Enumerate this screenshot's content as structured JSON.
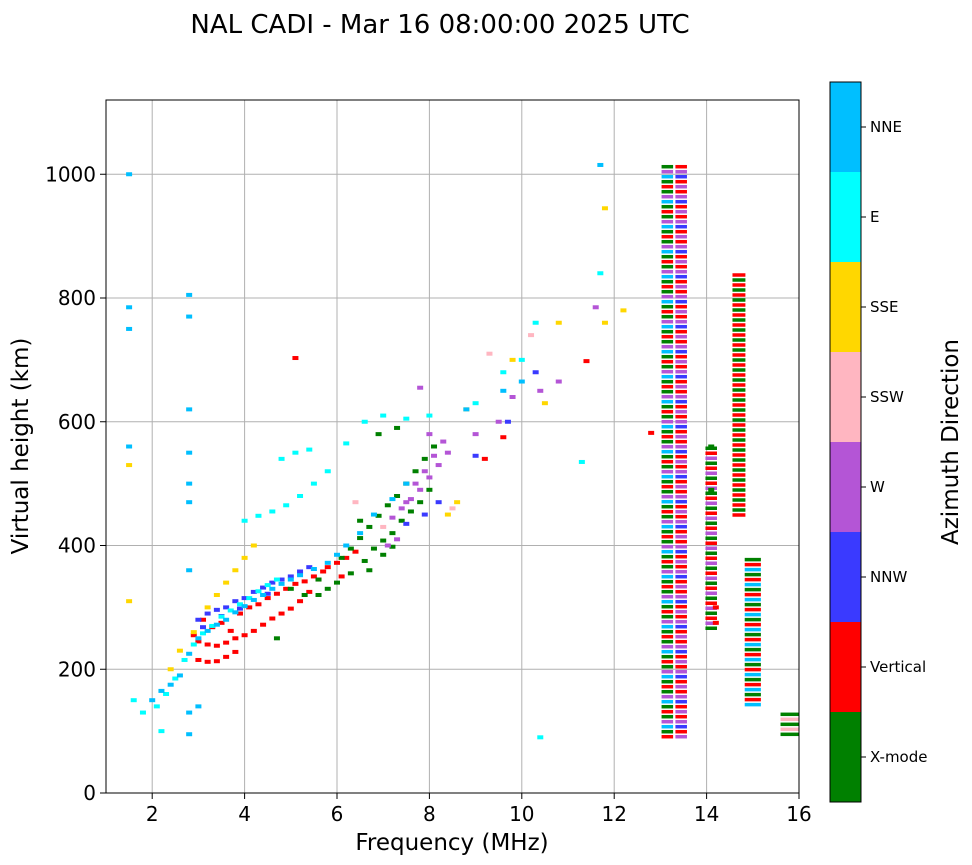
{
  "chart_data": {
    "type": "scatter",
    "title": "NAL CADI - Mar 16 08:00:00 2025 UTC",
    "xlabel": "Frequency (MHz)",
    "ylabel": "Virtual height (km)",
    "xlim": [
      1.0,
      16.0
    ],
    "ylim": [
      0,
      1120
    ],
    "xticks": [
      2,
      4,
      6,
      8,
      10,
      12,
      14,
      16
    ],
    "yticks": [
      0,
      200,
      400,
      600,
      800,
      1000
    ],
    "grid": true,
    "colorbar": {
      "label": "Azimuth Direction",
      "categories": [
        {
          "name": "X-mode",
          "color": "#008000"
        },
        {
          "name": "Vertical",
          "color": "#ff0000"
        },
        {
          "name": "NNW",
          "color": "#3a3aff"
        },
        {
          "name": "W",
          "color": "#b455d6"
        },
        {
          "name": "SSW",
          "color": "#ffb6c1"
        },
        {
          "name": "SSE",
          "color": "#ffd700"
        },
        {
          "name": "E",
          "color": "#00ffff"
        },
        {
          "name": "NNE",
          "color": "#00bfff"
        }
      ]
    },
    "series": [
      {
        "name": "Vertical",
        "points": [
          [
            3.0,
            215
          ],
          [
            3.2,
            212
          ],
          [
            3.4,
            213
          ],
          [
            3.6,
            220
          ],
          [
            3.8,
            228
          ],
          [
            3.0,
            245
          ],
          [
            3.2,
            240
          ],
          [
            3.4,
            238
          ],
          [
            3.6,
            243
          ],
          [
            3.8,
            250
          ],
          [
            4.0,
            255
          ],
          [
            4.2,
            262
          ],
          [
            4.4,
            272
          ],
          [
            4.6,
            282
          ],
          [
            4.8,
            290
          ],
          [
            5.0,
            298
          ],
          [
            5.2,
            310
          ],
          [
            5.4,
            325
          ],
          [
            5.6,
            345
          ],
          [
            5.8,
            365
          ],
          [
            6.1,
            350
          ],
          [
            6.4,
            390
          ],
          [
            2.9,
            255
          ],
          [
            3.3,
            268
          ],
          [
            3.5,
            275
          ],
          [
            3.9,
            290
          ],
          [
            4.1,
            300
          ],
          [
            4.3,
            305
          ],
          [
            4.5,
            315
          ],
          [
            4.7,
            322
          ],
          [
            4.9,
            330
          ],
          [
            5.1,
            338
          ],
          [
            5.3,
            342
          ],
          [
            5.5,
            350
          ],
          [
            5.7,
            358
          ],
          [
            6.0,
            372
          ],
          [
            6.2,
            380
          ],
          [
            3.1,
            280
          ],
          [
            3.7,
            262
          ],
          [
            5.1,
            703
          ],
          [
            9.2,
            540
          ],
          [
            9.6,
            575
          ],
          [
            11.4,
            698
          ],
          [
            12.8,
            582
          ],
          [
            14.2,
            300
          ],
          [
            14.2,
            275
          ]
        ]
      },
      {
        "name": "X-mode",
        "points": [
          [
            5.0,
            330
          ],
          [
            5.3,
            320
          ],
          [
            5.6,
            320
          ],
          [
            5.8,
            330
          ],
          [
            6.0,
            340
          ],
          [
            6.3,
            355
          ],
          [
            6.6,
            375
          ],
          [
            6.8,
            395
          ],
          [
            7.0,
            408
          ],
          [
            7.2,
            420
          ],
          [
            7.4,
            440
          ],
          [
            7.6,
            455
          ],
          [
            7.8,
            470
          ],
          [
            8.0,
            490
          ],
          [
            6.1,
            380
          ],
          [
            6.3,
            395
          ],
          [
            6.5,
            412
          ],
          [
            6.7,
            430
          ],
          [
            6.9,
            448
          ],
          [
            7.1,
            465
          ],
          [
            7.3,
            480
          ],
          [
            7.5,
            500
          ],
          [
            7.7,
            520
          ],
          [
            7.9,
            540
          ],
          [
            8.1,
            560
          ],
          [
            7.3,
            590
          ],
          [
            6.9,
            580
          ],
          [
            6.5,
            440
          ],
          [
            5.6,
            345
          ],
          [
            4.7,
            250
          ],
          [
            6.7,
            360
          ],
          [
            7.0,
            385
          ],
          [
            7.2,
            398
          ],
          [
            14.1,
            560
          ],
          [
            14.1,
            490
          ]
        ]
      },
      {
        "name": "NNW",
        "points": [
          [
            3.0,
            280
          ],
          [
            3.2,
            290
          ],
          [
            3.4,
            296
          ],
          [
            3.6,
            300
          ],
          [
            3.8,
            310
          ],
          [
            4.0,
            315
          ],
          [
            4.2,
            325
          ],
          [
            4.4,
            332
          ],
          [
            4.6,
            340
          ],
          [
            4.8,
            345
          ],
          [
            5.0,
            350
          ],
          [
            5.2,
            358
          ],
          [
            5.4,
            365
          ],
          [
            3.1,
            268
          ],
          [
            3.5,
            286
          ],
          [
            3.9,
            298
          ],
          [
            4.5,
            322
          ],
          [
            7.5,
            435
          ],
          [
            7.9,
            450
          ],
          [
            8.2,
            470
          ],
          [
            9.0,
            545
          ],
          [
            9.7,
            600
          ],
          [
            10.3,
            680
          ]
        ]
      },
      {
        "name": "W",
        "points": [
          [
            7.2,
            445
          ],
          [
            7.4,
            460
          ],
          [
            7.6,
            475
          ],
          [
            7.8,
            490
          ],
          [
            8.0,
            510
          ],
          [
            8.2,
            530
          ],
          [
            8.4,
            550
          ],
          [
            7.7,
            500
          ],
          [
            7.9,
            520
          ],
          [
            8.1,
            545
          ],
          [
            8.3,
            568
          ],
          [
            7.5,
            470
          ],
          [
            7.3,
            410
          ],
          [
            7.1,
            400
          ],
          [
            8.0,
            580
          ],
          [
            9.0,
            580
          ],
          [
            9.5,
            600
          ],
          [
            9.8,
            640
          ],
          [
            10.4,
            650
          ],
          [
            10.8,
            665
          ],
          [
            11.6,
            785
          ],
          [
            7.8,
            655
          ]
        ]
      },
      {
        "name": "SSW",
        "points": [
          [
            8.5,
            460
          ],
          [
            7.0,
            430
          ],
          [
            9.3,
            710
          ],
          [
            6.4,
            470
          ],
          [
            10.2,
            740
          ]
        ]
      },
      {
        "name": "SSE",
        "points": [
          [
            2.4,
            200
          ],
          [
            2.6,
            230
          ],
          [
            2.9,
            260
          ],
          [
            3.2,
            300
          ],
          [
            3.4,
            320
          ],
          [
            3.6,
            340
          ],
          [
            3.8,
            360
          ],
          [
            4.0,
            380
          ],
          [
            4.2,
            400
          ],
          [
            8.6,
            470
          ],
          [
            8.4,
            450
          ],
          [
            8.8,
            620
          ],
          [
            9.8,
            700
          ],
          [
            10.5,
            630
          ],
          [
            10.8,
            760
          ],
          [
            11.8,
            945
          ],
          [
            12.2,
            780
          ],
          [
            11.8,
            760
          ],
          [
            1.5,
            310
          ],
          [
            1.5,
            530
          ]
        ]
      },
      {
        "name": "E",
        "points": [
          [
            1.6,
            150
          ],
          [
            1.8,
            130
          ],
          [
            2.1,
            140
          ],
          [
            2.3,
            160
          ],
          [
            2.5,
            185
          ],
          [
            2.7,
            215
          ],
          [
            2.9,
            240
          ],
          [
            3.1,
            258
          ],
          [
            3.3,
            270
          ],
          [
            3.5,
            285
          ],
          [
            3.7,
            295
          ],
          [
            3.9,
            305
          ],
          [
            4.1,
            315
          ],
          [
            4.3,
            326
          ],
          [
            4.5,
            336
          ],
          [
            4.7,
            345
          ],
          [
            4.0,
            440
          ],
          [
            4.3,
            448
          ],
          [
            4.6,
            455
          ],
          [
            4.9,
            465
          ],
          [
            5.2,
            480
          ],
          [
            5.5,
            500
          ],
          [
            5.8,
            520
          ],
          [
            6.2,
            565
          ],
          [
            6.6,
            600
          ],
          [
            7.0,
            610
          ],
          [
            7.5,
            605
          ],
          [
            8.0,
            610
          ],
          [
            9.0,
            630
          ],
          [
            9.6,
            680
          ],
          [
            10.0,
            700
          ],
          [
            10.3,
            760
          ],
          [
            11.3,
            535
          ],
          [
            11.7,
            840
          ],
          [
            4.8,
            540
          ],
          [
            5.1,
            550
          ],
          [
            5.4,
            555
          ],
          [
            2.2,
            100
          ],
          [
            10.4,
            90
          ]
        ]
      },
      {
        "name": "NNE",
        "points": [
          [
            2.0,
            150
          ],
          [
            2.2,
            165
          ],
          [
            2.4,
            175
          ],
          [
            2.6,
            190
          ],
          [
            2.8,
            225
          ],
          [
            3.0,
            250
          ],
          [
            3.2,
            262
          ],
          [
            3.4,
            272
          ],
          [
            3.6,
            280
          ],
          [
            3.8,
            292
          ],
          [
            4.0,
            302
          ],
          [
            4.2,
            312
          ],
          [
            4.4,
            320
          ],
          [
            4.6,
            330
          ],
          [
            4.8,
            338
          ],
          [
            5.0,
            345
          ],
          [
            5.2,
            352
          ],
          [
            5.5,
            362
          ],
          [
            5.8,
            372
          ],
          [
            6.0,
            385
          ],
          [
            6.2,
            400
          ],
          [
            6.5,
            420
          ],
          [
            6.8,
            450
          ],
          [
            7.2,
            475
          ],
          [
            7.5,
            500
          ],
          [
            8.8,
            620
          ],
          [
            9.6,
            650
          ],
          [
            10.0,
            665
          ],
          [
            11.7,
            1015
          ],
          [
            1.5,
            1000
          ],
          [
            1.5,
            750
          ],
          [
            1.5,
            785
          ],
          [
            1.5,
            560
          ],
          [
            2.8,
            805
          ],
          [
            2.8,
            770
          ],
          [
            2.8,
            620
          ],
          [
            2.8,
            550
          ],
          [
            2.8,
            500
          ],
          [
            2.8,
            470
          ],
          [
            2.8,
            360
          ],
          [
            2.8,
            95
          ],
          [
            2.8,
            130
          ],
          [
            3.0,
            140
          ]
        ]
      }
    ],
    "columns": [
      {
        "name": "13.15 MHz column",
        "x": 13.15,
        "width": 0.25,
        "ymin": 90,
        "ymax": 1015,
        "colors": [
          "X-mode",
          "W",
          "NNE",
          "X-mode",
          "Vertical"
        ]
      },
      {
        "name": "13.45 MHz column",
        "x": 13.45,
        "width": 0.25,
        "ymin": 90,
        "ymax": 1015,
        "colors": [
          "Vertical",
          "W",
          "NNW",
          "Vertical",
          "W"
        ]
      },
      {
        "name": "14.1 MHz column",
        "x": 14.1,
        "width": 0.25,
        "ymin": 265,
        "ymax": 560,
        "colors": [
          "X-mode",
          "Vertical",
          "W"
        ]
      },
      {
        "name": "14.7 MHz column",
        "x": 14.7,
        "width": 0.28,
        "ymin": 445,
        "ymax": 840,
        "colors": [
          "Vertical",
          "X-mode"
        ]
      },
      {
        "name": "15.0 MHz column",
        "x": 15.0,
        "width": 0.35,
        "ymin": 145,
        "ymax": 380,
        "colors": [
          "X-mode",
          "Vertical",
          "NNE"
        ]
      },
      {
        "name": "15.8 MHz column",
        "x": 15.8,
        "width": 0.4,
        "ymin": 90,
        "ymax": 130,
        "colors": [
          "X-mode",
          "SSW"
        ]
      }
    ]
  }
}
